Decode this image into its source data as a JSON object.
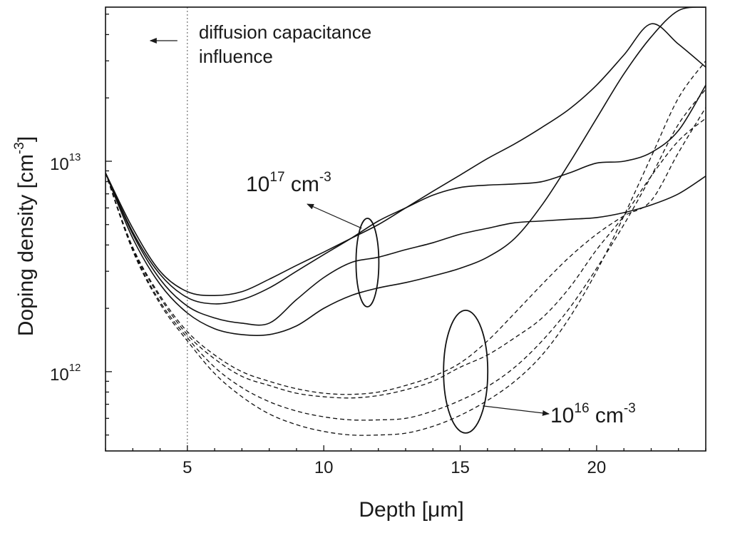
{
  "chart_data": {
    "type": "line",
    "title": "",
    "xlabel": "Depth [μm]",
    "ylabel": "Doping density [cm⁻³]",
    "ylabel_parts": {
      "main": "Doping density [cm",
      "sup": "-3",
      "close": "]"
    },
    "xlim": [
      2,
      24
    ],
    "ylim": [
      420000000000.0,
      54000000000000.0
    ],
    "yscale": "log",
    "x_ticks": [
      5,
      10,
      15,
      20
    ],
    "x_tick_labels": [
      "5",
      "10",
      "15",
      "20"
    ],
    "y_ticks": [
      1000000000000.0,
      10000000000000.0
    ],
    "y_tick_labels": [
      {
        "base": "10",
        "exp": "12"
      },
      {
        "base": "10",
        "exp": "13"
      }
    ],
    "grid": false,
    "annotations": [
      {
        "kind": "vertical-line",
        "x": 5,
        "text_lines": [
          "diffusion capacitance",
          "influence"
        ],
        "arrow": "left"
      },
      {
        "kind": "group-ellipse",
        "x": 11.6,
        "y": 3300000000000.0,
        "label": {
          "base": "10",
          "exp": "17",
          "unit": " cm",
          "unit_exp": "-3"
        },
        "group": "solid"
      },
      {
        "kind": "group-ellipse",
        "x": 15.2,
        "y": 1000000000000.0,
        "label": {
          "base": "10",
          "exp": "16",
          "unit": " cm",
          "unit_exp": "-3"
        },
        "group": "dashed"
      }
    ],
    "series": [
      {
        "name": "10^17 cm^-3 (a)",
        "style": "solid",
        "x": [
          2,
          3,
          4,
          5,
          6,
          7,
          8,
          9,
          10,
          11,
          12,
          13,
          14,
          15,
          16,
          17,
          18,
          19,
          20,
          21,
          22,
          23,
          24
        ],
        "y": [
          8800000000000.0,
          4800000000000.0,
          3000000000000.0,
          2400000000000.0,
          2300000000000.0,
          2400000000000.0,
          2750000000000.0,
          3200000000000.0,
          3700000000000.0,
          4300000000000.0,
          5000000000000.0,
          6000000000000.0,
          7200000000000.0,
          8600000000000.0,
          10300000000000.0,
          12100000000000.0,
          14500000000000.0,
          17700000000000.0,
          23000000000000.0,
          32000000000000.0,
          45000000000000.0,
          36000000000000.0,
          28000000000000.0
        ]
      },
      {
        "name": "10^17 cm^-3 (b)",
        "style": "solid",
        "x": [
          2,
          3,
          4,
          5,
          6,
          7,
          8,
          9,
          10,
          11,
          12,
          13,
          14,
          15,
          16,
          17,
          18,
          19,
          20,
          21,
          22,
          23,
          24
        ],
        "y": [
          8800000000000.0,
          4600000000000.0,
          2900000000000.0,
          2250000000000.0,
          2100000000000.0,
          2200000000000.0,
          2500000000000.0,
          3000000000000.0,
          3600000000000.0,
          4300000000000.0,
          5200000000000.0,
          6000000000000.0,
          6900000000000.0,
          7500000000000.0,
          7700000000000.0,
          7800000000000.0,
          8000000000000.0,
          8800000000000.0,
          9800000000000.0,
          10000000000000.0,
          11000000000000.0,
          14000000000000.0,
          23000000000000.0
        ]
      },
      {
        "name": "10^17 cm^-3 (c)",
        "style": "solid",
        "x": [
          2,
          3,
          4,
          5,
          6,
          7,
          8,
          9,
          10,
          11,
          12,
          13,
          14,
          15,
          16,
          17,
          18,
          19,
          20,
          21,
          22,
          23,
          24
        ],
        "y": [
          8800000000000.0,
          4500000000000.0,
          2750000000000.0,
          2050000000000.0,
          1800000000000.0,
          1700000000000.0,
          1700000000000.0,
          2200000000000.0,
          2800000000000.0,
          3300000000000.0,
          3500000000000.0,
          3800000000000.0,
          4100000000000.0,
          4500000000000.0,
          4800000000000.0,
          5100000000000.0,
          5200000000000.0,
          5300000000000.0,
          5400000000000.0,
          5700000000000.0,
          6200000000000.0,
          7000000000000.0,
          8500000000000.0
        ]
      },
      {
        "name": "10^17 cm^-3 (d)",
        "style": "solid",
        "x": [
          2,
          3,
          4,
          5,
          6,
          7,
          8,
          9,
          10,
          11,
          12,
          13,
          14,
          15,
          16,
          17,
          18,
          19,
          20,
          21,
          22,
          23,
          24
        ],
        "y": [
          8800000000000.0,
          4300000000000.0,
          2600000000000.0,
          1900000000000.0,
          1600000000000.0,
          1500000000000.0,
          1500000000000.0,
          1650000000000.0,
          2000000000000.0,
          2300000000000.0,
          2500000000000.0,
          2650000000000.0,
          2850000000000.0,
          3100000000000.0,
          3500000000000.0,
          4300000000000.0,
          6200000000000.0,
          9800000000000.0,
          16000000000000.0,
          26000000000000.0,
          39000000000000.0,
          52000000000000.0,
          54000000000000.0
        ]
      },
      {
        "name": "10^16 cm^-3 (a)",
        "style": "dashed",
        "x": [
          2,
          3,
          4,
          5,
          6,
          7,
          8,
          9,
          10,
          11,
          12,
          13,
          14,
          15,
          16,
          17,
          18,
          19,
          20,
          21,
          22,
          23,
          24
        ],
        "y": [
          8800000000000.0,
          3900000000000.0,
          2300000000000.0,
          1550000000000.0,
          1200000000000.0,
          1000000000000.0,
          900000000000.0,
          830000000000.0,
          790000000000.0,
          780000000000.0,
          800000000000.0,
          860000000000.0,
          950000000000.0,
          1100000000000.0,
          1400000000000.0,
          1900000000000.0,
          2600000000000.0,
          3500000000000.0,
          4500000000000.0,
          5500000000000.0,
          6500000000000.0,
          11000000000000.0,
          18000000000000.0
        ]
      },
      {
        "name": "10^16 cm^-3 (b)",
        "style": "dashed",
        "x": [
          2,
          3,
          4,
          5,
          6,
          7,
          8,
          9,
          10,
          11,
          12,
          13,
          14,
          15,
          16,
          17,
          18,
          19,
          20,
          21,
          22,
          23,
          24
        ],
        "y": [
          8800000000000.0,
          3850000000000.0,
          2250000000000.0,
          1500000000000.0,
          1150000000000.0,
          950000000000.0,
          860000000000.0,
          790000000000.0,
          760000000000.0,
          750000000000.0,
          770000000000.0,
          820000000000.0,
          900000000000.0,
          1050000000000.0,
          1200000000000.0,
          1450000000000.0,
          1800000000000.0,
          2500000000000.0,
          3800000000000.0,
          5500000000000.0,
          8500000000000.0,
          12500000000000.0,
          16000000000000.0
        ]
      },
      {
        "name": "10^16 cm^-3 (c)",
        "style": "dashed",
        "x": [
          2,
          3,
          4,
          5,
          6,
          7,
          8,
          9,
          10,
          11,
          12,
          13,
          14,
          15,
          16,
          17,
          18,
          19,
          20,
          21,
          22,
          23,
          24
        ],
        "y": [
          8800000000000.0,
          3800000000000.0,
          2150000000000.0,
          1450000000000.0,
          1050000000000.0,
          840000000000.0,
          720000000000.0,
          650000000000.0,
          610000000000.0,
          590000000000.0,
          590000000000.0,
          600000000000.0,
          650000000000.0,
          730000000000.0,
          850000000000.0,
          1050000000000.0,
          1400000000000.0,
          2000000000000.0,
          3100000000000.0,
          5000000000000.0,
          8500000000000.0,
          15000000000000.0,
          22000000000000.0
        ]
      },
      {
        "name": "10^16 cm^-3 (d)",
        "style": "dashed",
        "x": [
          2,
          3,
          4,
          5,
          6,
          7,
          8,
          9,
          10,
          11,
          12,
          13,
          14,
          15,
          16,
          17,
          18,
          19,
          20,
          21,
          22,
          23,
          24
        ],
        "y": [
          8800000000000.0,
          3750000000000.0,
          2100000000000.0,
          1400000000000.0,
          980000000000.0,
          760000000000.0,
          630000000000.0,
          560000000000.0,
          520000000000.0,
          500000000000.0,
          500000000000.0,
          510000000000.0,
          550000000000.0,
          620000000000.0,
          730000000000.0,
          900000000000.0,
          1200000000000.0,
          1800000000000.0,
          3000000000000.0,
          5500000000000.0,
          10500000000000.0,
          20000000000000.0,
          30000000000000.0
        ]
      }
    ]
  }
}
